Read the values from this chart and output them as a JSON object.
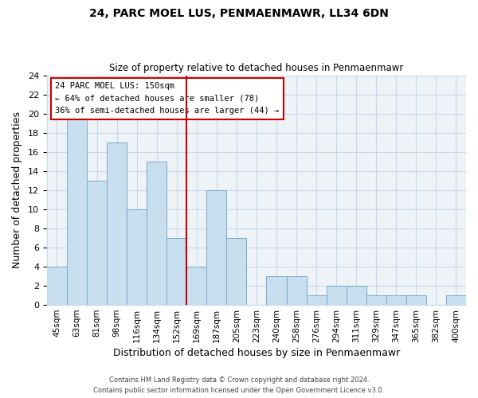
{
  "title": "24, PARC MOEL LUS, PENMAENMAWR, LL34 6DN",
  "subtitle": "Size of property relative to detached houses in Penmaenmawr",
  "xlabel": "Distribution of detached houses by size in Penmaenmawr",
  "ylabel": "Number of detached properties",
  "bar_color": "#c8dff0",
  "bar_edge_color": "#7aaac8",
  "categories": [
    "45sqm",
    "63sqm",
    "81sqm",
    "98sqm",
    "116sqm",
    "134sqm",
    "152sqm",
    "169sqm",
    "187sqm",
    "205sqm",
    "223sqm",
    "240sqm",
    "258sqm",
    "276sqm",
    "294sqm",
    "311sqm",
    "329sqm",
    "347sqm",
    "365sqm",
    "382sqm",
    "400sqm"
  ],
  "values": [
    4,
    20,
    13,
    17,
    10,
    15,
    7,
    4,
    12,
    7,
    0,
    3,
    3,
    1,
    2,
    2,
    1,
    1,
    1,
    0,
    1
  ],
  "vline_x_index": 6,
  "vline_color": "#cc0000",
  "ylim": [
    0,
    24
  ],
  "yticks": [
    0,
    2,
    4,
    6,
    8,
    10,
    12,
    14,
    16,
    18,
    20,
    22,
    24
  ],
  "annotation_title": "24 PARC MOEL LUS: 150sqm",
  "annotation_line1": "← 64% of detached houses are smaller (78)",
  "annotation_line2": "36% of semi-detached houses are larger (44) →",
  "annotation_box_color": "#cc0000",
  "footer_line1": "Contains HM Land Registry data © Crown copyright and database right 2024.",
  "footer_line2": "Contains public sector information licensed under the Open Government Licence v3.0.",
  "grid_color": "#c8d8e8",
  "background_color": "#eef3f8"
}
